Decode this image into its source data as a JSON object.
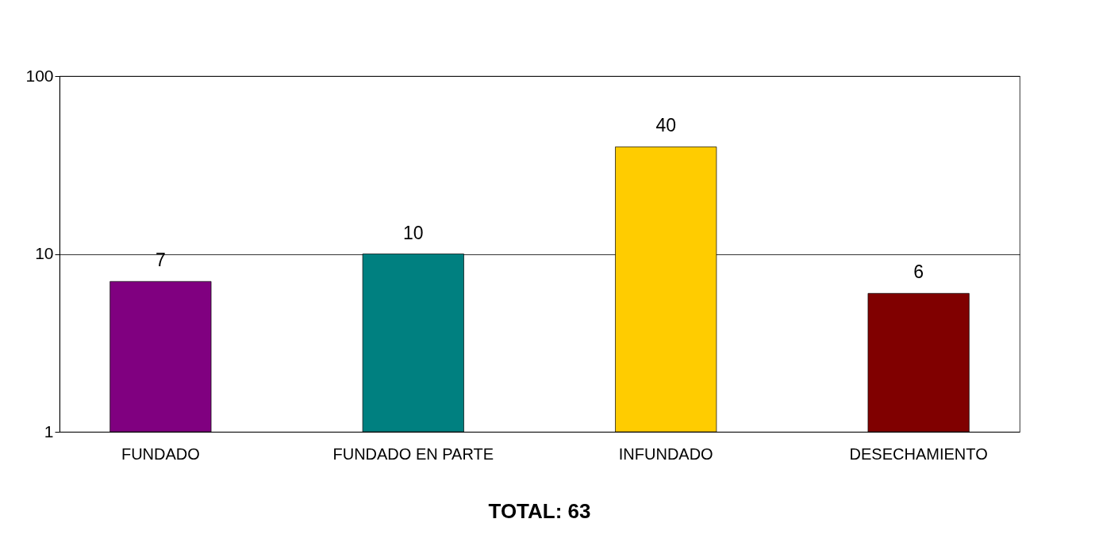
{
  "chart_data": {
    "type": "bar",
    "categories": [
      "FUNDADO",
      "FUNDADO EN PARTE",
      "INFUNDADO",
      "DESECHAMIENTO"
    ],
    "values": [
      7,
      10,
      40,
      6
    ],
    "colors": [
      "#800080",
      "#008080",
      "#ffcc00",
      "#800000"
    ],
    "log": true,
    "ylim": [
      1,
      100
    ],
    "yticks": [
      1,
      10,
      100
    ],
    "grid": "y",
    "data_labels": true,
    "annotations": [
      "TOTAL:          63"
    ]
  }
}
